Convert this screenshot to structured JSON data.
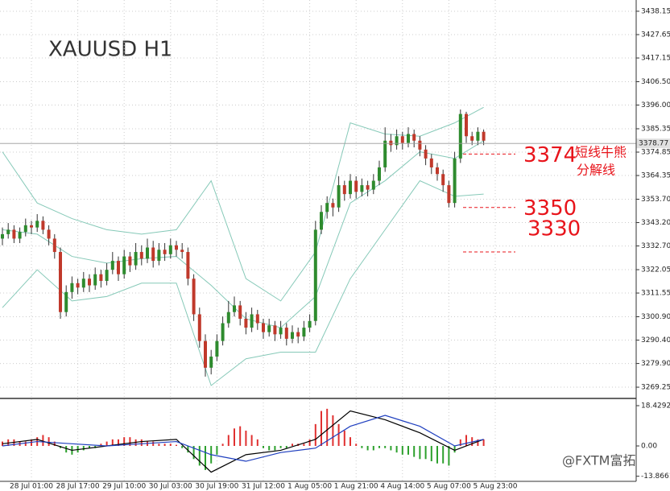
{
  "chart_data": [
    {
      "type": "candlestick",
      "title": "XAUUSD  H1",
      "ylim": [
        3264.2,
        3443.2
      ],
      "yticks": [
        3438.15,
        3427.65,
        3417.15,
        {
          "value": 3406.5,
          "label": "3406.50"
        },
        {
          "value": 3396.0,
          "label": "3396.00"
        },
        3385.35,
        3374.85,
        3364.35,
        {
          "value": 3353.7,
          "label": "3353.70"
        },
        {
          "value": 3343.2,
          "label": "3343.20"
        },
        {
          "value": 3332.7,
          "label": "3332.70"
        },
        3322.05,
        3311.55,
        {
          "value": 3300.9,
          "label": "3300.90"
        },
        {
          "value": 3290.4,
          "label": "3290.40"
        },
        {
          "value": 3279.9,
          "label": "3279.90"
        },
        3269.25
      ],
      "xlabels": [
        {
          "index": 5,
          "label": "28 Jul 01:00"
        },
        {
          "index": 13,
          "label": "28 Jul 17:00"
        },
        {
          "index": 21,
          "label": "29 Jul 10:00"
        },
        {
          "index": 29,
          "label": "30 Jul 03:00"
        },
        {
          "index": 37,
          "label": "30 Jul 19:00"
        },
        {
          "index": 45,
          "label": "31 Jul 12:00"
        },
        {
          "index": 53,
          "label": "1 Aug 05:00"
        },
        {
          "index": 61,
          "label": "1 Aug 21:00"
        },
        {
          "index": 69,
          "label": "4 Aug 14:00"
        },
        {
          "index": 77,
          "label": "5 Aug 07:00"
        },
        {
          "index": 85,
          "label": "5 Aug 23:00"
        }
      ],
      "grid": true,
      "up_color": "#2e8b2e",
      "down_color": "#c0392b",
      "band_color": "#86c9b8",
      "candles": [
        [
          3336,
          3341,
          3333,
          3338
        ],
        [
          3338,
          3343,
          3336,
          3340
        ],
        [
          3340,
          3342,
          3334,
          3336
        ],
        [
          3336,
          3341,
          3334,
          3339
        ],
        [
          3339,
          3345,
          3337,
          3342
        ],
        [
          3342,
          3344,
          3338,
          3341
        ],
        [
          3341,
          3347,
          3339,
          3344
        ],
        [
          3344,
          3346,
          3338,
          3340
        ],
        [
          3340,
          3342,
          3333,
          3336
        ],
        [
          3336,
          3338,
          3327,
          3330
        ],
        [
          3330,
          3332,
          3300,
          3303
        ],
        [
          3303,
          3315,
          3301,
          3312
        ],
        [
          3312,
          3319,
          3309,
          3316
        ],
        [
          3316,
          3318,
          3311,
          3314
        ],
        [
          3314,
          3321,
          3312,
          3318
        ],
        [
          3318,
          3320,
          3312,
          3315
        ],
        [
          3315,
          3323,
          3313,
          3320
        ],
        [
          3320,
          3322,
          3314,
          3317
        ],
        [
          3317,
          3325,
          3315,
          3322
        ],
        [
          3322,
          3330,
          3320,
          3326
        ],
        [
          3326,
          3328,
          3317,
          3320
        ],
        [
          3320,
          3331,
          3318,
          3328
        ],
        [
          3328,
          3330,
          3321,
          3324
        ],
        [
          3324,
          3334,
          3322,
          3330
        ],
        [
          3330,
          3333,
          3324,
          3327
        ],
        [
          3327,
          3336,
          3325,
          3332
        ],
        [
          3332,
          3335,
          3323,
          3326
        ],
        [
          3326,
          3334,
          3324,
          3331
        ],
        [
          3331,
          3334,
          3326,
          3329
        ],
        [
          3329,
          3336,
          3327,
          3333
        ],
        [
          3333,
          3335,
          3328,
          3331
        ],
        [
          3331,
          3334,
          3327,
          3330
        ],
        [
          3330,
          3332,
          3315,
          3318
        ],
        [
          3318,
          3320,
          3299,
          3302
        ],
        [
          3302,
          3305,
          3287,
          3290
        ],
        [
          3290,
          3293,
          3274,
          3278
        ],
        [
          3278,
          3286,
          3275,
          3283
        ],
        [
          3283,
          3293,
          3281,
          3290
        ],
        [
          3290,
          3301,
          3288,
          3298
        ],
        [
          3298,
          3308,
          3296,
          3303
        ],
        [
          3303,
          3310,
          3301,
          3306
        ],
        [
          3306,
          3308,
          3297,
          3300
        ],
        [
          3300,
          3303,
          3293,
          3296
        ],
        [
          3296,
          3305,
          3294,
          3302
        ],
        [
          3302,
          3304,
          3295,
          3298
        ],
        [
          3298,
          3300,
          3291,
          3294
        ],
        [
          3294,
          3300,
          3292,
          3297
        ],
        [
          3297,
          3299,
          3290,
          3293
        ],
        [
          3293,
          3299,
          3291,
          3296
        ],
        [
          3296,
          3298,
          3288,
          3291
        ],
        [
          3291,
          3297,
          3289,
          3294
        ],
        [
          3294,
          3296,
          3289,
          3292
        ],
        [
          3292,
          3299,
          3290,
          3296
        ],
        [
          3296,
          3302,
          3294,
          3299
        ],
        [
          3299,
          3344,
          3297,
          3340
        ],
        [
          3340,
          3351,
          3338,
          3348
        ],
        [
          3348,
          3355,
          3345,
          3352
        ],
        [
          3352,
          3354,
          3346,
          3350
        ],
        [
          3350,
          3364,
          3348,
          3360
        ],
        [
          3360,
          3362,
          3353,
          3356
        ],
        [
          3356,
          3365,
          3354,
          3362
        ],
        [
          3362,
          3364,
          3354,
          3357
        ],
        [
          3357,
          3363,
          3355,
          3360
        ],
        [
          3360,
          3362,
          3355,
          3358
        ],
        [
          3358,
          3365,
          3356,
          3362
        ],
        [
          3362,
          3371,
          3360,
          3368
        ],
        [
          3368,
          3386,
          3366,
          3380
        ],
        [
          3380,
          3383,
          3375,
          3378
        ],
        [
          3378,
          3385,
          3376,
          3382
        ],
        [
          3382,
          3384,
          3376,
          3379
        ],
        [
          3379,
          3386,
          3377,
          3383
        ],
        [
          3383,
          3385,
          3377,
          3380
        ],
        [
          3380,
          3382,
          3373,
          3376
        ],
        [
          3376,
          3378,
          3369,
          3372
        ],
        [
          3372,
          3374,
          3365,
          3368
        ],
        [
          3368,
          3370,
          3362,
          3365
        ],
        [
          3365,
          3367,
          3357,
          3360
        ],
        [
          3360,
          3362,
          3350,
          3352
        ],
        [
          3352,
          3375,
          3350,
          3372
        ],
        [
          3372,
          3394,
          3370,
          3392
        ],
        [
          3392,
          3393,
          3379,
          3382
        ],
        [
          3382,
          3384,
          3378,
          3380
        ],
        [
          3380,
          3386,
          3378,
          3384
        ],
        [
          3384,
          3385,
          3378,
          3380
        ]
      ],
      "band_x": [
        0,
        6,
        12,
        18,
        24,
        30,
        36,
        42,
        48,
        54,
        60,
        66,
        72,
        78,
        83
      ],
      "bands": [
        {
          "values": [
            3375,
            3352,
            3345,
            3340,
            3338,
            3340,
            3362,
            3318,
            3308,
            3330,
            3388,
            3383,
            3382,
            3388,
            3395
          ]
        },
        {
          "values": [
            3340,
            3338,
            3328,
            3325,
            3327,
            3328,
            3315,
            3300,
            3296,
            3310,
            3352,
            3362,
            3375,
            3372,
            3380
          ]
        },
        {
          "values": [
            3305,
            3322,
            3308,
            3310,
            3316,
            3316,
            3270,
            3282,
            3285,
            3285,
            3318,
            3340,
            3362,
            3355,
            3356
          ]
        }
      ],
      "last_price": 3378.77,
      "levels": [
        3374,
        3350,
        3330
      ],
      "notes": [
        "短线牛熊",
        "分解线"
      ],
      "watermark": "@FXTM富拓"
    },
    {
      "type": "macd",
      "ylim": [
        -16.2,
        21.0
      ],
      "yticks": [
        18.4292,
        {
          "value": 0,
          "label": "0.00"
        },
        -13.8661
      ],
      "pos_color": "#e03030",
      "neg_color": "#2ca02c",
      "histogram": [
        2,
        3,
        3,
        2,
        2,
        3,
        4,
        5,
        4,
        2,
        -1,
        -3,
        -4,
        -3,
        -2,
        -1,
        -1,
        1,
        2,
        3,
        3,
        4,
        4,
        3,
        3,
        2,
        2,
        1,
        1,
        1,
        0.5,
        -1,
        -3,
        -6,
        -9,
        -11,
        -8,
        -4,
        1,
        5,
        8,
        9,
        7,
        5,
        3,
        -1,
        -2,
        -2,
        -1,
        -1,
        1,
        1,
        1,
        3,
        10,
        16,
        17,
        14,
        10,
        7,
        4,
        1,
        -1,
        -2,
        -2,
        -1,
        -1,
        -2,
        -3,
        -4,
        -4,
        -5,
        -6,
        -6,
        -7,
        -8,
        -8,
        -9,
        -3,
        3,
        5,
        4,
        3,
        3
      ],
      "line_x": [
        0,
        6,
        12,
        18,
        24,
        30,
        36,
        42,
        48,
        54,
        60,
        66,
        72,
        78,
        83
      ],
      "series": [
        {
          "color": "#000000",
          "values": [
            1,
            3,
            -2,
            0,
            2,
            3,
            -12,
            -4,
            -2,
            3,
            16,
            12,
            6,
            -2,
            3
          ]
        },
        {
          "color": "#1f3fbf",
          "values": [
            0,
            2,
            1,
            0,
            1,
            2,
            -4,
            -7,
            -3,
            -1,
            9,
            14,
            9,
            0,
            3
          ]
        }
      ]
    }
  ]
}
